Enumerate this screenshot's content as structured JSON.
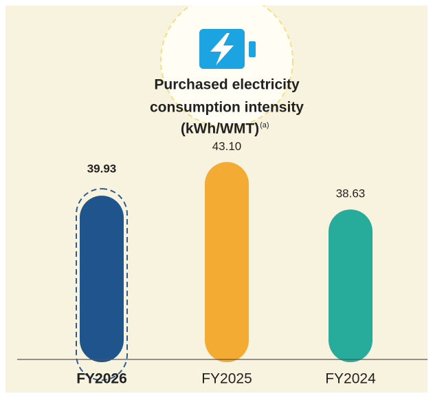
{
  "chart_data": {
    "type": "bar",
    "title": [
      "Purchased electricity",
      "consumption intensity",
      "(kWh/WMT)"
    ],
    "title_note": "(a)",
    "categories": [
      "FY2026",
      "FY2025",
      "FY2024"
    ],
    "values": [
      39.93,
      43.1,
      38.63
    ],
    "value_labels": [
      "39.93",
      "43.10",
      "38.63"
    ],
    "colors": [
      "#1f558c",
      "#f4ab33",
      "#27ab9b"
    ],
    "highlight": 0,
    "ylim": [
      24.5,
      45
    ]
  }
}
